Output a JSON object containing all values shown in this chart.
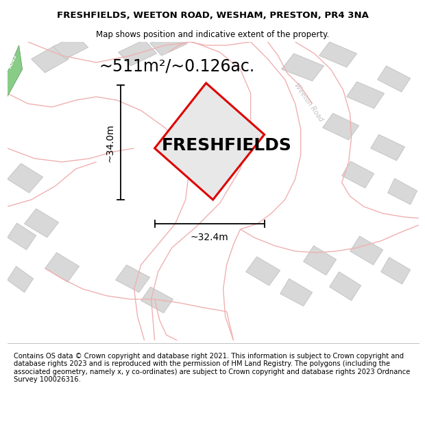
{
  "title": "FRESHFIELDS, WEETON ROAD, WESHAM, PRESTON, PR4 3NA",
  "subtitle": "Map shows position and indicative extent of the property.",
  "area_label": "~511m²/~0.126ac.",
  "property_label": "FRESHFIELDS",
  "dim_vertical": "~34.0m",
  "dim_horizontal": "~32.4m",
  "road_label": "Weeton Road",
  "a585_label": "A585",
  "copyright_text": "Contains OS data © Crown copyright and database right 2021. This information is subject to Crown copyright and database rights 2023 and is reproduced with the permission of HM Land Registry. The polygons (including the associated geometry, namely x, y co-ordinates) are subject to Crown copyright and database rights 2023 Ordnance Survey 100026316.",
  "map_bg": "#f7f3f3",
  "property_fill": "#e8e8e8",
  "property_edge": "#dd0000",
  "building_fill": "#d8d8d8",
  "building_edge": "#c0c0c0",
  "road_color": "#f0b0b0",
  "road_lw": 1.2,
  "a585_fill": "#88cc88",
  "a585_edge": "#559955",
  "title_fontsize": 9.5,
  "subtitle_fontsize": 8.5,
  "copyright_fontsize": 7.2,
  "area_fontsize": 17,
  "property_label_fontsize": 18,
  "dim_fontsize": 10
}
